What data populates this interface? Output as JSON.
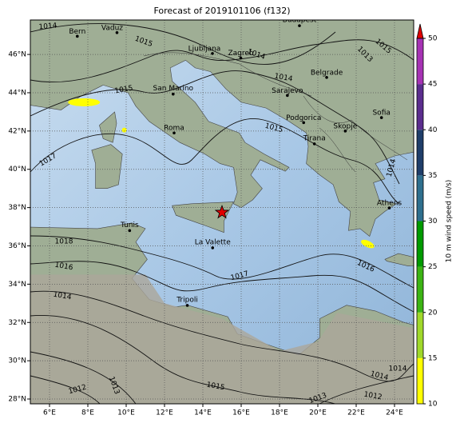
{
  "title": "Forecast of 2019101106 (f132)",
  "map": {
    "xlim": [
      5,
      25
    ],
    "ylim": [
      27.75,
      47.8
    ],
    "xticks": [
      {
        "value": 6,
        "label": "6°E"
      },
      {
        "value": 8,
        "label": "8°E"
      },
      {
        "value": 10,
        "label": "10°E"
      },
      {
        "value": 12,
        "label": "12°E"
      },
      {
        "value": 14,
        "label": "14°E"
      },
      {
        "value": 16,
        "label": "16°E"
      },
      {
        "value": 18,
        "label": "18°E"
      },
      {
        "value": 20,
        "label": "20°E"
      },
      {
        "value": 22,
        "label": "22°E"
      },
      {
        "value": 24,
        "label": "24°E"
      }
    ],
    "yticks": [
      {
        "value": 28,
        "label": "28°N"
      },
      {
        "value": 30,
        "label": "30°N"
      },
      {
        "value": 32,
        "label": "32°N"
      },
      {
        "value": 34,
        "label": "34°N"
      },
      {
        "value": 36,
        "label": "36°N"
      },
      {
        "value": 38,
        "label": "38°N"
      },
      {
        "value": 40,
        "label": "40°N"
      },
      {
        "value": 42,
        "label": "42°N"
      },
      {
        "value": 44,
        "label": "44°N"
      },
      {
        "value": 46,
        "label": "46°N"
      }
    ],
    "grid": true,
    "cities": [
      {
        "name": "Bern",
        "lon": 7.45,
        "lat": 46.95
      },
      {
        "name": "Vaduz",
        "lon": 9.52,
        "lat": 47.14
      },
      {
        "name": "Budapest",
        "lon": 19.04,
        "lat": 47.5
      },
      {
        "name": "Ljubljana",
        "lon": 14.5,
        "lat": 46.05
      },
      {
        "name": "Zagreb",
        "lon": 15.98,
        "lat": 45.81
      },
      {
        "name": "Belgrade",
        "lon": 20.46,
        "lat": 44.8
      },
      {
        "name": "San Marino",
        "lon": 12.45,
        "lat": 43.93
      },
      {
        "name": "Sarajevo",
        "lon": 18.41,
        "lat": 43.86
      },
      {
        "name": "Sofia",
        "lon": 23.32,
        "lat": 42.7
      },
      {
        "name": "Roma",
        "lon": 12.5,
        "lat": 41.9
      },
      {
        "name": "Podgorica",
        "lon": 19.26,
        "lat": 42.44
      },
      {
        "name": "Skopje",
        "lon": 21.43,
        "lat": 42.0
      },
      {
        "name": "Tirana",
        "lon": 19.82,
        "lat": 41.33
      },
      {
        "name": "Athens",
        "lon": 23.73,
        "lat": 37.98
      },
      {
        "name": "Tunis",
        "lon": 10.18,
        "lat": 36.8
      },
      {
        "name": "La Valette",
        "lon": 14.51,
        "lat": 35.9
      },
      {
        "name": "Tripoli",
        "lon": 13.19,
        "lat": 32.89
      }
    ],
    "marker": {
      "lon": 15.0,
      "lat": 37.75,
      "color": "#e00000"
    },
    "isobar_labels": [
      "1014",
      "1015",
      "1014",
      "1015",
      "1013",
      "1015",
      "1014",
      "1015",
      "1017",
      "1014",
      "1018",
      "1016",
      "1017",
      "1016",
      "1014",
      "1014",
      "1014",
      "1012",
      "1013",
      "1015",
      "1012",
      "1013"
    ]
  },
  "colorbar": {
    "label": "10 m wind speed (m/s)",
    "lim": [
      10,
      50
    ],
    "ticks": [
      10,
      15,
      20,
      25,
      30,
      35,
      40,
      45,
      50
    ],
    "colors": [
      "#ffff00",
      "#a0d82a",
      "#3cb414",
      "#009a00",
      "#2e6f8e",
      "#1f3e6a",
      "#5b2d8e",
      "#a632b4"
    ],
    "extend_color": "#e00000"
  }
}
